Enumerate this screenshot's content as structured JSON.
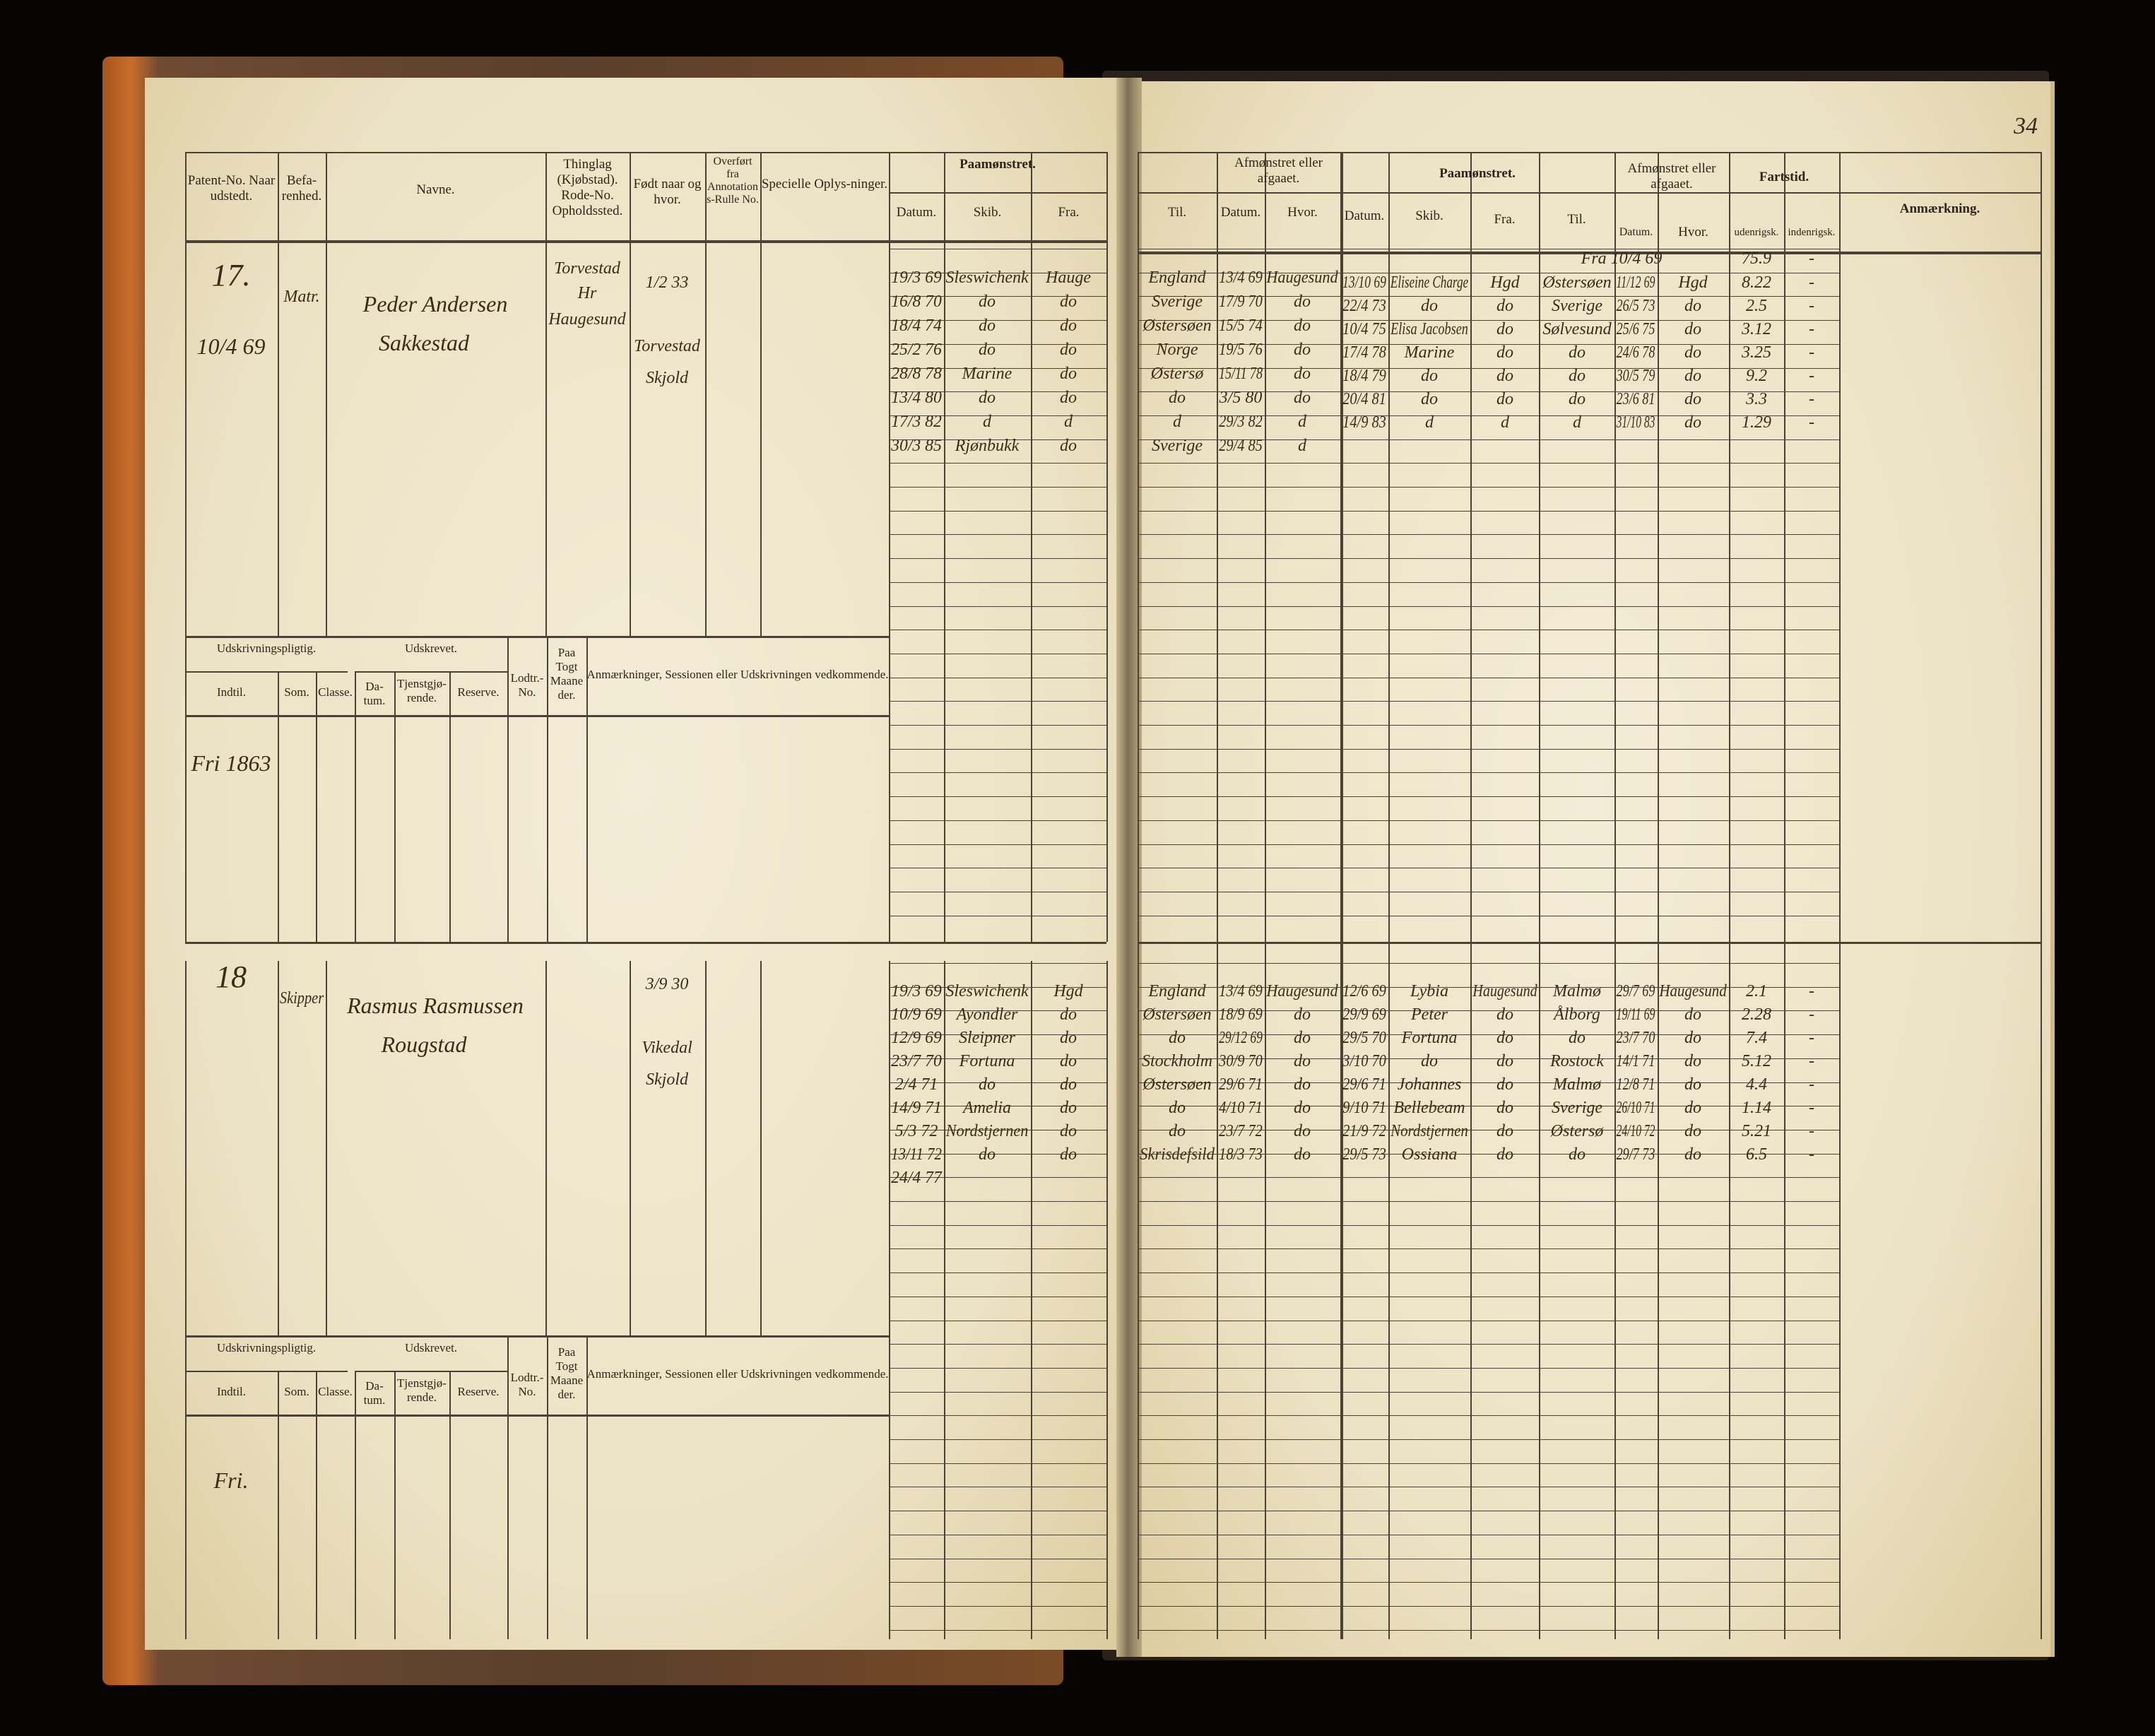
{
  "page_number": "34",
  "colors": {
    "paper": "#ece2c4",
    "ink": "#3a2c1a",
    "cover": "#a4541f"
  },
  "left_header": {
    "patent": "Patent-No. Naar udstedt.",
    "befarenhed": "Befa-renhed.",
    "navne": "Navne.",
    "thinglag": "Thinglag (Kjøbstad). Rode-No. Opholdssted.",
    "fodt": "Født naar og hvor.",
    "overfort": "Overført fra Annotations-Rulle No.",
    "specielle": "Specielle Oplys-ninger.",
    "paamonstret": "Paamønstret.",
    "datum": "Datum.",
    "skib": "Skib.",
    "fra": "Fra."
  },
  "right_header": {
    "til": "Til.",
    "afmonstret": "Afmønstret eller afgaaet.",
    "datum": "Datum.",
    "hvor": "Hvor.",
    "paamonstret": "Paamønstret.",
    "datum2": "Datum.",
    "skib": "Skib.",
    "fra": "Fra.",
    "til2": "Til.",
    "afmonstret2": "Afmønstret eller afgaaet.",
    "datum3": "Datum.",
    "hvor2": "Hvor.",
    "fartstid": "Fartstid.",
    "udenrigsk": "udenrigsk.",
    "indenrigsk": "indenrigsk.",
    "anmaerkning": "Anmærkning."
  },
  "udskrivning_header": {
    "pligtig": "Udskrivningspligtig.",
    "udskrevet": "Udskrevet.",
    "indtil": "Indtil.",
    "som": "Som.",
    "classe": "Classe.",
    "datum": "Da-tum.",
    "tjenstgjorende": "Tjenstgjø-rende.",
    "reserve": "Reserve.",
    "lodtr": "Lodtr.-No.",
    "paa_togt": "Paa Togt Maaneder.",
    "anmaerkninger": "Anmærkninger, Sessionen eller Udskrivningen vedkommende."
  },
  "records": [
    {
      "number": "17.",
      "issued": "10/4 69",
      "befarenhed": "Matr.",
      "name": "Peder Andersen",
      "name2": "Sakkestad",
      "thinglag": "Torvestad",
      "thinglag2": "Hr",
      "thinglag3": "Haugesund",
      "born": "1/2 33",
      "born_place": "Torvestad",
      "born_place2": "Skjold",
      "indtil": "Fri 1863",
      "voyages_left": [
        [
          "19/3 69",
          "Sleswichenk",
          "Hauge",
          "England",
          "13/4 69",
          "Haugesund"
        ],
        [
          "16/8 70",
          "do",
          "do",
          "Sverige",
          "17/9 70",
          "do"
        ],
        [
          "18/4 74",
          "do",
          "do",
          "Østersøen",
          "15/5 74",
          "do"
        ],
        [
          "25/2 76",
          "do",
          "do",
          "Norge",
          "19/5 76",
          "do"
        ],
        [
          "28/8 78",
          "Marine",
          "do",
          "Østersø",
          "15/11 78",
          "do"
        ],
        [
          "13/4 80",
          "do",
          "do",
          "do",
          "3/5 80",
          "do"
        ],
        [
          "17/3 82",
          "d",
          "d",
          "d",
          "29/3 82",
          "d"
        ],
        [
          "30/3 85",
          "Rjønbukk",
          "do",
          "Sverige",
          "29/4 85",
          "d"
        ]
      ],
      "voyages_right": [
        [
          "",
          "",
          "",
          "",
          "Fra 10/4 69",
          "",
          "75.9",
          "-"
        ],
        [
          "13/10 69",
          "Eliseine Charge",
          "Hgd",
          "Østersøen",
          "11/12 69",
          "Hgd",
          "8.22",
          "-"
        ],
        [
          "22/4 73",
          "do",
          "do",
          "Sverige",
          "26/5 73",
          "do",
          "2.5",
          "-"
        ],
        [
          "10/4 75",
          "Elisa Jacobsen",
          "do",
          "Sølvesund",
          "25/6 75",
          "do",
          "3.12",
          "-"
        ],
        [
          "17/4 78",
          "Marine",
          "do",
          "do",
          "24/6 78",
          "do",
          "3.25",
          "-"
        ],
        [
          "18/4 79",
          "do",
          "do",
          "do",
          "30/5 79",
          "do",
          "9.2",
          "-"
        ],
        [
          "20/4 81",
          "do",
          "do",
          "do",
          "23/6 81",
          "do",
          "3.3",
          "-"
        ],
        [
          "14/9 83",
          "d",
          "d",
          "d",
          "31/10 83",
          "do",
          "1.29",
          "-"
        ]
      ]
    },
    {
      "number": "18",
      "issued": "",
      "befarenhed": "Skipper",
      "name": "Rasmus Rasmussen",
      "name2": "Rougstad",
      "thinglag": "",
      "thinglag2": "",
      "thinglag3": "",
      "born": "3/9 30",
      "born_place": "Vikedal",
      "born_place2": "Skjold",
      "indtil": "Fri.",
      "voyages_left": [
        [
          "19/3 69",
          "Sleswichenk",
          "Hgd",
          "England",
          "13/4 69",
          "Haugesund"
        ],
        [
          "10/9 69",
          "Ayondler",
          "do",
          "Østersøen",
          "18/9 69",
          "do"
        ],
        [
          "12/9 69",
          "Sleipner",
          "do",
          "do",
          "29/12 69",
          "do"
        ],
        [
          "23/7 70",
          "Fortuna",
          "do",
          "Stockholm",
          "30/9 70",
          "do"
        ],
        [
          "2/4 71",
          "do",
          "do",
          "Østersøen",
          "29/6 71",
          "do"
        ],
        [
          "14/9 71",
          "Amelia",
          "do",
          "do",
          "4/10 71",
          "do"
        ],
        [
          "5/3 72",
          "Nordstjernen",
          "do",
          "do",
          "23/7 72",
          "do"
        ],
        [
          "13/11 72",
          "do",
          "do",
          "Skrisdefsild",
          "18/3 73",
          "do"
        ],
        [
          "24/4 77",
          "",
          "",
          "",
          "",
          ""
        ]
      ],
      "voyages_right": [
        [
          "12/6 69",
          "Lybia",
          "Haugesund",
          "Malmø",
          "29/7 69",
          "Haugesund",
          "2.1",
          "-"
        ],
        [
          "29/9 69",
          "Peter",
          "do",
          "Ålborg",
          "19/11 69",
          "do",
          "2.28",
          "-"
        ],
        [
          "29/5 70",
          "Fortuna",
          "do",
          "do",
          "23/7 70",
          "do",
          "7.4",
          "-"
        ],
        [
          "3/10 70",
          "do",
          "do",
          "Rostock",
          "14/1 71",
          "do",
          "5.12",
          "-"
        ],
        [
          "29/6 71",
          "Johannes",
          "do",
          "Malmø",
          "12/8 71",
          "do",
          "4.4",
          "-"
        ],
        [
          "9/10 71",
          "Bellebeam",
          "do",
          "Sverige",
          "26/10 71",
          "do",
          "1.14",
          "-"
        ],
        [
          "21/9 72",
          "Nordstjernen",
          "do",
          "Østersø",
          "24/10 72",
          "do",
          "5.21",
          "-"
        ],
        [
          "29/5 73",
          "Ossiana",
          "do",
          "do",
          "29/7 73",
          "do",
          "6.5",
          "-"
        ]
      ]
    }
  ]
}
